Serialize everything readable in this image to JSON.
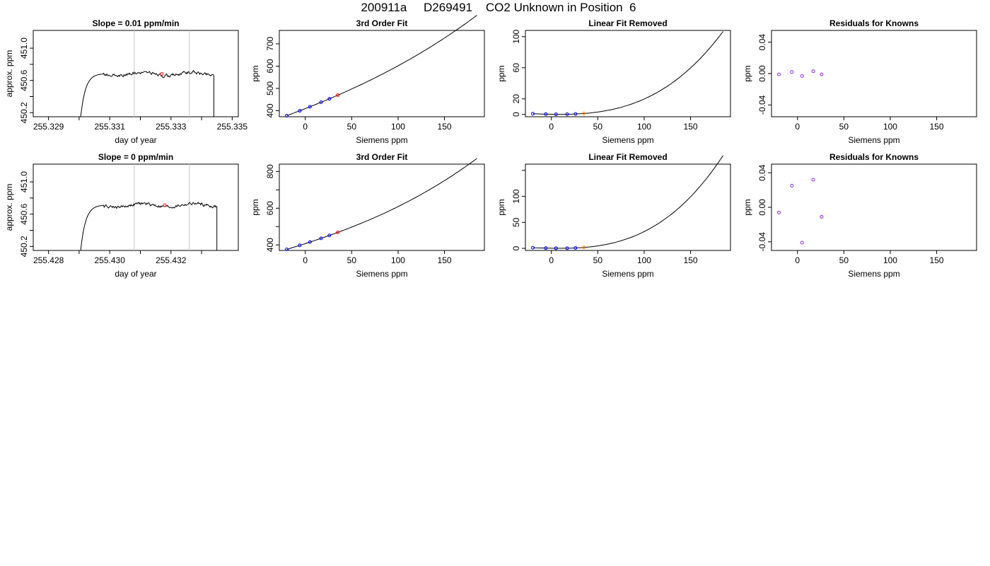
{
  "page_title": "200911a     D269491    CO2 Unknown in Position  6",
  "colors": {
    "axis": "#000000",
    "curve": "#000000",
    "gridline": "#c8c8c8",
    "known": "#0000ff",
    "unknown": "#ff0000",
    "unknown_alt": "#ff8c00",
    "residual": "#8a2be2"
  },
  "chart_data": [
    {
      "type": "line",
      "title": "Slope =  0.01  ppm/min",
      "xlabel": "day of year",
      "ylabel": "approx. ppm",
      "xlim": [
        255.3285,
        255.3352
      ],
      "ylim": [
        450.15,
        451.22
      ],
      "xticks": [
        255.329,
        255.33,
        255.331,
        255.332,
        255.333,
        255.334,
        255.335
      ],
      "xtick_labels": [
        "255.329",
        "",
        "255.331",
        "",
        "255.333",
        "",
        "255.335"
      ],
      "yticks": [
        450.2,
        450.4,
        450.6,
        450.8,
        451.0
      ],
      "ytick_labels": [
        "450.2",
        "",
        "450.6",
        "",
        "451.0"
      ],
      "vlines": [
        255.3318,
        255.3336
      ],
      "trace": {
        "start": 255.33,
        "end": 255.3344,
        "plateau": 450.68
      },
      "marker": {
        "x": 255.3327,
        "y": 450.68
      }
    },
    {
      "type": "scatter",
      "title": "3rd Order Fit",
      "xlabel": "Siemens ppm",
      "ylabel": "ppm",
      "xlim": [
        -28,
        193
      ],
      "ylim": [
        373,
        760
      ],
      "xticks": [
        0,
        50,
        100,
        150
      ],
      "xtick_labels": [
        "0",
        "50",
        "100",
        "150"
      ],
      "yticks": [
        400,
        500,
        600,
        700
      ],
      "ytick_labels": [
        "400",
        "500",
        "600",
        "700"
      ],
      "curve": {
        "x0": -20,
        "x1": 185,
        "coef": [
          409.5,
          1.63,
          0.0023,
          6e-06
        ]
      },
      "known_x": [
        -20,
        -6,
        5,
        17,
        26
      ],
      "unknown_x": [
        35
      ]
    },
    {
      "type": "scatter",
      "title": "Linear Fit Removed",
      "xlabel": "Siemens ppm",
      "ylabel": "ppm",
      "xlim": [
        -28,
        193
      ],
      "ylim": [
        -3,
        108
      ],
      "xticks": [
        0,
        50,
        100,
        150
      ],
      "xtick_labels": [
        "0",
        "50",
        "100",
        "150"
      ],
      "yticks": [
        0,
        20,
        60,
        100
      ],
      "ytick_labels": [
        "0",
        "20",
        "60",
        "100"
      ],
      "curve": {
        "x0": -20,
        "x1": 185,
        "coef": [
          0.2,
          -0.019,
          0.0009,
          1.25e-05
        ]
      },
      "known_x": [
        -20,
        -6,
        5,
        17,
        26
      ],
      "unknown_x": [
        35
      ]
    },
    {
      "type": "scatter",
      "title": "Residuals for Knowns",
      "xlabel": "Siemens ppm",
      "ylabel": "ppm",
      "xlim": [
        -28,
        193
      ],
      "ylim": [
        -0.055,
        0.055
      ],
      "xticks": [
        0,
        50,
        100,
        150
      ],
      "xtick_labels": [
        "0",
        "50",
        "100",
        "150"
      ],
      "yticks": [
        -0.04,
        0.0,
        0.04
      ],
      "ytick_labels": [
        "-0.04",
        "0.00",
        "0.04"
      ],
      "points": [
        [
          -20,
          -0.001
        ],
        [
          -6,
          0.002
        ],
        [
          5,
          -0.003
        ],
        [
          17,
          0.003
        ],
        [
          26,
          -0.001
        ]
      ]
    },
    {
      "type": "line",
      "title": "Slope =  0  ppm/min",
      "xlabel": "day of year",
      "ylabel": "approx. ppm",
      "xlim": [
        255.4275,
        255.4342
      ],
      "ylim": [
        450.15,
        451.22
      ],
      "xticks": [
        255.428,
        255.429,
        255.43,
        255.431,
        255.432,
        255.433
      ],
      "xtick_labels": [
        "255.428",
        "",
        "255.430",
        "",
        "255.432",
        ""
      ],
      "yticks": [
        450.2,
        450.4,
        450.6,
        450.8,
        451.0
      ],
      "ytick_labels": [
        "450.2",
        "",
        "450.6",
        "",
        "451.0"
      ],
      "vlines": [
        255.4308,
        255.4326
      ],
      "trace": {
        "start": 255.429,
        "end": 255.4335,
        "plateau": 450.71
      },
      "marker": {
        "x": 255.4318,
        "y": 450.71
      }
    },
    {
      "type": "scatter",
      "title": "3rd Order Fit",
      "xlabel": "Siemens ppm",
      "ylabel": "ppm",
      "xlim": [
        -28,
        193
      ],
      "ylim": [
        370,
        840
      ],
      "xticks": [
        0,
        50,
        100,
        150
      ],
      "xtick_labels": [
        "0",
        "50",
        "100",
        "150"
      ],
      "yticks": [
        400,
        500,
        600,
        700,
        800
      ],
      "ytick_labels": [
        "400",
        "",
        "600",
        "",
        "800"
      ],
      "curve": {
        "x0": -20,
        "x1": 185,
        "coef": [
          407.4,
          1.63,
          0.0028,
          1.05e-05
        ]
      },
      "known_x": [
        -20,
        -6,
        5,
        17,
        26
      ],
      "unknown_x": [
        35
      ]
    },
    {
      "type": "scatter",
      "title": "Linear Fit Removed",
      "xlabel": "Siemens ppm",
      "ylabel": "ppm",
      "xlim": [
        -28,
        193
      ],
      "ylim": [
        -4,
        162
      ],
      "xticks": [
        0,
        50,
        100,
        150
      ],
      "xtick_labels": [
        "0",
        "50",
        "100",
        "150"
      ],
      "yticks": [
        0,
        50,
        100,
        150
      ],
      "ytick_labels": [
        "0",
        "50",
        "100",
        ""
      ],
      "curve": {
        "x0": -20,
        "x1": 185,
        "coef": [
          0.3,
          -0.03,
          0.0013,
          2.2e-05
        ]
      },
      "known_x": [
        -20,
        -6,
        5,
        17,
        26
      ],
      "unknown_x": [
        35
      ]
    },
    {
      "type": "scatter",
      "title": "Residuals for Knowns",
      "xlabel": "Siemens ppm",
      "ylabel": "ppm",
      "xlim": [
        -28,
        193
      ],
      "ylim": [
        -0.05,
        0.05
      ],
      "xticks": [
        0,
        50,
        100,
        150
      ],
      "xtick_labels": [
        "0",
        "50",
        "100",
        "150"
      ],
      "yticks": [
        -0.04,
        0.0,
        0.04
      ],
      "ytick_labels": [
        "-0.04",
        "0.00",
        "0.04"
      ],
      "points": [
        [
          -20,
          -0.006
        ],
        [
          -6,
          0.025
        ],
        [
          5,
          -0.041
        ],
        [
          17,
          0.032
        ],
        [
          26,
          -0.011
        ]
      ]
    }
  ]
}
